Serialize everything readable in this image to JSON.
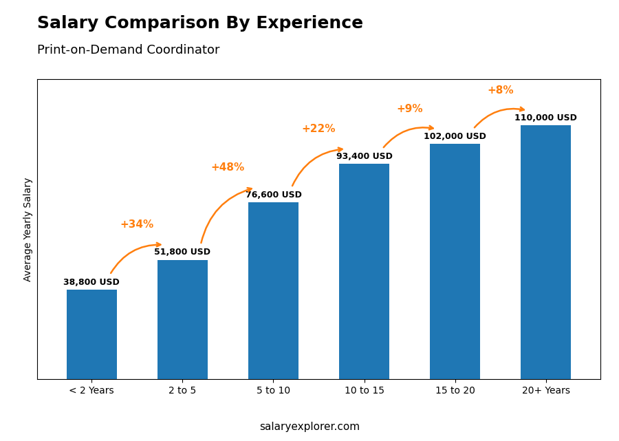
{
  "chart_data": {
    "type": "bar",
    "title": "Salary Comparison By Experience",
    "subtitle": "Print-on-Demand Coordinator",
    "ylabel": "Average Yearly Salary",
    "categories": [
      "< 2 Years",
      "2 to 5",
      "5 to 10",
      "10 to 15",
      "15 to 20",
      "20+ Years"
    ],
    "values": [
      38800,
      51800,
      76600,
      93400,
      102000,
      110000
    ],
    "value_labels": [
      "38,800 USD",
      "51,800 USD",
      "76,600 USD",
      "93,400 USD",
      "102,000 USD",
      "110,000 USD"
    ],
    "data_labels": true,
    "ylim": [
      0,
      130000
    ],
    "tick_labels": "x",
    "grid": false,
    "annotations": [
      {
        "text": "+34%",
        "from": "< 2 Years",
        "to": "2 to 5"
      },
      {
        "text": "+48%",
        "from": "2 to 5",
        "to": "5 to 10"
      },
      {
        "text": "+22%",
        "from": "5 to 10",
        "to": "10 to 15"
      },
      {
        "text": "+9%",
        "from": "10 to 15",
        "to": "15 to 20"
      },
      {
        "text": "+8%",
        "from": "15 to 20",
        "to": "20+ Years"
      },
      {
        "text": "salaryexplorer.com"
      }
    ]
  }
}
